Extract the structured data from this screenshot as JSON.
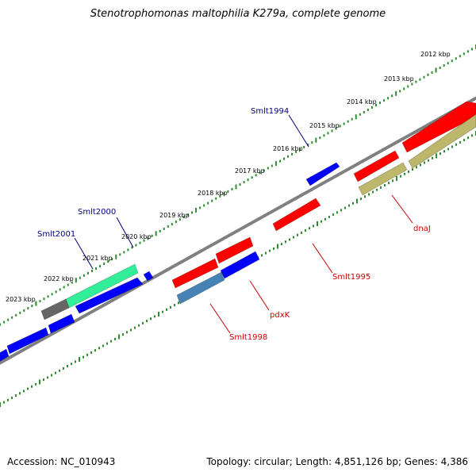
{
  "title": "Stenotrophomonas maltophilia K279a, complete genome",
  "footer": {
    "accession": "Accession: NC_010943",
    "summary": "Topology: circular; Length: 4,851,126 bp; Genes: 4,386"
  },
  "colors": {
    "backbone": "#808080",
    "ruler_ticks": "#2e8b2e",
    "forward_gene": "#0000ff",
    "reverse_gene": "#ff0000",
    "forward_label": "#000080",
    "reverse_label": "#cc0000",
    "highlight_green": "#33ee99",
    "highlight_gray": "#666666",
    "highlight_steelblue": "#4682b4",
    "highlight_khaki": "#bdb76b"
  },
  "ruler": {
    "unit": "kbp",
    "labels": [
      "2012 kbp",
      "2013 kbp",
      "2014 kbp",
      "2015 kbp",
      "2016 kbp",
      "2017 kbp",
      "2018 kbp",
      "2019 kbp",
      "2020 kbp",
      "2021 kbp",
      "2022 kbp",
      "2023 kbp"
    ]
  },
  "forward_labels": [
    "Smlt1994",
    "Smlt2000",
    "Smlt2001"
  ],
  "reverse_labels": [
    "dnaJ",
    "Smlt1995",
    "pdxK",
    "Smlt1998"
  ]
}
